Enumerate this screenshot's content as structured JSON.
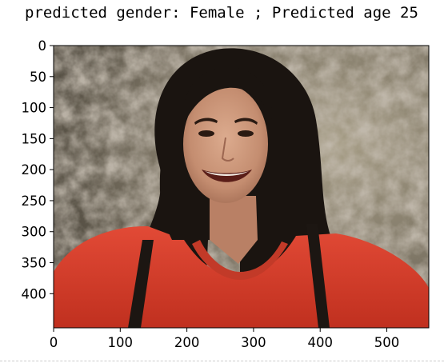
{
  "title": "predicted gender: Female ; Predicted age 25",
  "image": {
    "description_icon": "portrait-photo",
    "colors": {
      "background_stone": "#7d7565",
      "hair": "#1a1410",
      "skin": "#c89478",
      "shirt": "#d8412e",
      "strap": "#1c1612"
    }
  },
  "axes": {
    "x_range": [
      0,
      563
    ],
    "y_range": [
      0,
      455
    ],
    "y_inverted": true,
    "x_ticks": [
      {
        "value": 0,
        "label": "0"
      },
      {
        "value": 100,
        "label": "100"
      },
      {
        "value": 200,
        "label": "200"
      },
      {
        "value": 300,
        "label": "300"
      },
      {
        "value": 400,
        "label": "400"
      },
      {
        "value": 500,
        "label": "500"
      }
    ],
    "y_ticks": [
      {
        "value": 0,
        "label": "0"
      },
      {
        "value": 50,
        "label": "50"
      },
      {
        "value": 100,
        "label": "100"
      },
      {
        "value": 150,
        "label": "150"
      },
      {
        "value": 200,
        "label": "200"
      },
      {
        "value": 250,
        "label": "250"
      },
      {
        "value": 300,
        "label": "300"
      },
      {
        "value": 350,
        "label": "350"
      },
      {
        "value": 400,
        "label": "400"
      }
    ]
  }
}
